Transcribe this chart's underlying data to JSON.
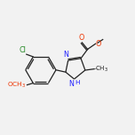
{
  "bg_color": "#f2f2f2",
  "bond_color": "#222222",
  "atom_colors": {
    "N": "#2020ff",
    "O": "#ee3300",
    "Cl": "#228822",
    "C": "#222222",
    "H": "#222222"
  },
  "lw": 0.9,
  "fs_label": 5.8,
  "fs_small": 4.8,
  "xlim": [
    0,
    11
  ],
  "ylim": [
    0,
    10
  ]
}
